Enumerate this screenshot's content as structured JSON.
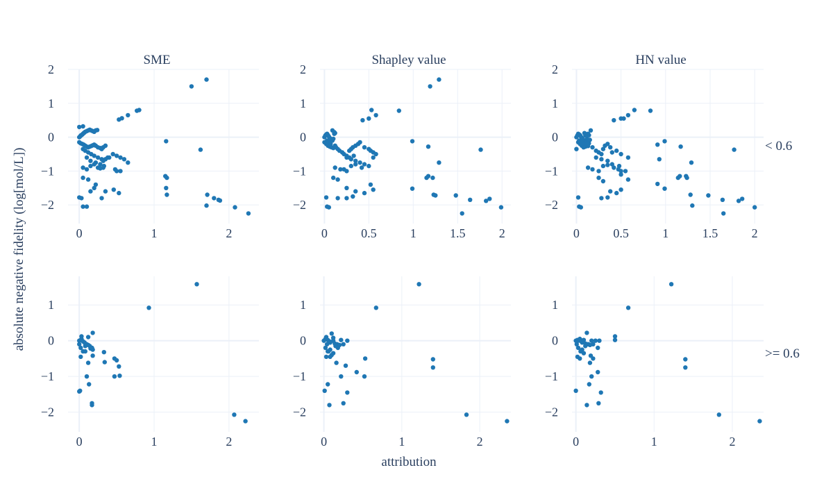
{
  "y_title": "absolute negative fidelity (log[mol/L])",
  "x_title": "attribution",
  "column_titles": [
    "SME",
    "Shapley value",
    "HN value"
  ],
  "row_titles": [
    "< 0.6",
    ">= 0.6"
  ],
  "colors": {
    "marker": "#1f77b4",
    "grid": "#ebf0f8",
    "zero_line": "#ebf0f8",
    "text": "#2a3f5f"
  },
  "chart_data": [
    {
      "type": "scatter",
      "title": "SME",
      "row_facet": "< 0.6",
      "xlim": [
        -0.15,
        2.4
      ],
      "ylim": [
        -2.55,
        2.0
      ],
      "x_ticks": [
        0,
        1,
        2
      ],
      "x_tick_labels": [
        "0",
        "1",
        "2"
      ],
      "y_ticks": [
        -2,
        -1,
        0,
        1,
        2
      ],
      "y_tick_labels": [
        "−2",
        "−1",
        "0",
        "1",
        "2"
      ],
      "x": [
        0.0,
        0.01,
        0.02,
        0.03,
        0.04,
        0.05,
        0.06,
        0.07,
        0.08,
        0.1,
        0.12,
        0.14,
        0.16,
        0.18,
        0.2,
        0.22,
        0.24,
        0.0,
        0.02,
        0.04,
        0.06,
        0.08,
        0.1,
        0.12,
        0.14,
        0.16,
        0.18,
        0.2,
        0.22,
        0.25,
        0.28,
        0.3,
        0.32,
        0.35,
        0.05,
        0.08,
        0.12,
        0.16,
        0.2,
        0.25,
        0.3,
        0.1,
        0.15,
        0.22,
        0.28,
        0.33,
        0.38,
        0.45,
        0.5,
        0.55,
        0.6,
        0.65,
        0.32,
        0.48,
        0.5,
        0.55,
        0.05,
        0.1,
        0.15,
        0.2,
        0.25,
        0.28,
        0.32,
        0.35,
        0.4,
        0.05,
        0.12,
        0.2,
        0.3,
        0.35,
        0.15,
        0.22,
        0.46,
        0.53,
        0.0,
        0.03,
        0.05,
        0.1,
        0.0,
        0.05,
        0.53,
        0.57,
        0.65,
        0.77,
        0.8,
        1.16,
        1.15,
        1.17,
        1.16,
        1.17,
        1.5,
        1.7,
        1.62,
        1.71,
        1.7,
        1.8,
        1.86,
        1.88,
        2.08,
        2.26
      ],
      "y": [
        0.0,
        0.02,
        0.05,
        0.06,
        0.08,
        0.1,
        0.12,
        0.14,
        0.16,
        0.18,
        0.2,
        0.22,
        0.2,
        0.18,
        0.16,
        0.2,
        0.21,
        -0.15,
        -0.18,
        -0.2,
        -0.22,
        -0.25,
        -0.28,
        -0.3,
        -0.28,
        -0.26,
        -0.24,
        -0.22,
        -0.25,
        -0.3,
        -0.32,
        -0.35,
        -0.3,
        -0.25,
        -0.35,
        -0.4,
        -0.45,
        -0.5,
        -0.55,
        -0.6,
        -0.65,
        -0.6,
        -0.7,
        -0.75,
        -0.8,
        -0.85,
        -0.6,
        -0.5,
        -0.55,
        -0.6,
        -0.65,
        -0.75,
        -0.9,
        -0.95,
        -1.0,
        -1.0,
        -0.9,
        -0.95,
        -0.85,
        -0.8,
        -0.9,
        -0.92,
        -0.7,
        -0.65,
        -0.6,
        -1.2,
        -1.25,
        -1.5,
        -1.8,
        -1.6,
        -1.6,
        -1.4,
        -1.55,
        -1.65,
        -1.78,
        -1.8,
        -2.05,
        -2.05,
        0.3,
        0.32,
        0.52,
        0.56,
        0.65,
        0.78,
        0.8,
        -0.12,
        -1.15,
        -1.2,
        -1.5,
        -1.7,
        1.5,
        1.7,
        -0.37,
        -1.7,
        -2.02,
        -1.8,
        -1.85,
        -1.87,
        -2.07,
        -2.25
      ]
    },
    {
      "type": "scatter",
      "title": "Shapley value",
      "row_facet": "< 0.6",
      "xlim": [
        -0.05,
        2.1
      ],
      "ylim": [
        -2.55,
        2.0
      ],
      "x_ticks": [
        0,
        0.5,
        1,
        1.5,
        2
      ],
      "x_tick_labels": [
        "0",
        "0.5",
        "1",
        "1.5",
        "2"
      ],
      "y_ticks": [
        -2,
        -1,
        0,
        1,
        2
      ],
      "y_tick_labels": [
        "−2",
        "−1",
        "0",
        "1",
        "2"
      ],
      "x": [
        0.0,
        0.01,
        0.02,
        0.03,
        0.04,
        0.05,
        0.06,
        0.07,
        0.08,
        0.09,
        0.1,
        0.11,
        0.12,
        0.0,
        0.02,
        0.04,
        0.06,
        0.08,
        0.1,
        0.12,
        0.03,
        0.05,
        0.07,
        0.09,
        0.11,
        0.13,
        0.15,
        0.17,
        0.2,
        0.22,
        0.25,
        0.28,
        0.3,
        0.32,
        0.35,
        0.38,
        0.4,
        0.45,
        0.5,
        0.52,
        0.55,
        0.58,
        0.25,
        0.3,
        0.35,
        0.4,
        0.45,
        0.5,
        0.55,
        0.12,
        0.18,
        0.25,
        0.3,
        0.35,
        0.42,
        0.1,
        0.15,
        0.22,
        0.28,
        0.33,
        0.25,
        0.35,
        0.45,
        0.52,
        0.55,
        0.02,
        0.03,
        0.05,
        0.15,
        0.25,
        0.32,
        0.43,
        0.5,
        0.53,
        0.58,
        0.84,
        0.99,
        1.17,
        1.29,
        0.99,
        1.15,
        1.17,
        1.22,
        1.23,
        1.25,
        1.48,
        1.64,
        1.76,
        1.82,
        1.86,
        1.99,
        1.19,
        1.29,
        1.55
      ],
      "y": [
        0.0,
        0.05,
        0.08,
        0.1,
        0.06,
        0.02,
        -0.02,
        -0.05,
        -0.08,
        -0.1,
        -0.05,
        0.1,
        0.12,
        -0.15,
        -0.2,
        -0.25,
        -0.28,
        -0.3,
        -0.32,
        -0.25,
        -0.1,
        -0.15,
        -0.2,
        0.2,
        0.15,
        -0.3,
        -0.35,
        -0.4,
        -0.45,
        -0.5,
        -0.55,
        -0.4,
        -0.35,
        -0.3,
        -0.25,
        -0.2,
        -0.15,
        -0.3,
        -0.35,
        -0.4,
        -0.45,
        -0.5,
        -0.6,
        -0.65,
        -0.7,
        -0.75,
        -0.8,
        -0.85,
        -0.6,
        -0.9,
        -0.95,
        -1.0,
        -0.85,
        -0.8,
        -0.9,
        -1.2,
        -1.25,
        -0.95,
        -0.6,
        -0.55,
        -1.5,
        -1.6,
        -1.65,
        -1.4,
        -1.55,
        -1.78,
        -2.05,
        -2.07,
        -1.8,
        -1.8,
        -1.75,
        0.5,
        0.55,
        0.8,
        0.65,
        0.78,
        -0.12,
        -0.28,
        -0.75,
        -1.52,
        -1.2,
        -1.15,
        -1.2,
        -1.7,
        -1.72,
        -1.72,
        -1.85,
        -0.37,
        -1.88,
        -1.82,
        -2.07,
        1.5,
        1.7,
        -2.25
      ]
    },
    {
      "type": "scatter",
      "title": "HN value",
      "row_facet": "< 0.6",
      "xlim": [
        -0.05,
        2.1
      ],
      "ylim": [
        -2.55,
        2.0
      ],
      "x_ticks": [
        0,
        0.5,
        1,
        1.5,
        2
      ],
      "x_tick_labels": [
        "0",
        "0.5",
        "1",
        "1.5",
        "2"
      ],
      "y_ticks": [
        -2,
        -1,
        0,
        1,
        2
      ],
      "y_tick_labels": [
        "−2",
        "−1",
        "0",
        "1",
        "2"
      ],
      "x": [
        0.0,
        0.01,
        0.02,
        0.03,
        0.04,
        0.05,
        0.06,
        0.07,
        0.08,
        0.09,
        0.1,
        0.11,
        0.12,
        0.13,
        0.14,
        0.15,
        0.02,
        0.04,
        0.06,
        0.08,
        0.1,
        0.12,
        0.14,
        0.16,
        0.0,
        0.03,
        0.05,
        0.07,
        0.09,
        0.11,
        0.13,
        0.18,
        0.22,
        0.25,
        0.28,
        0.3,
        0.32,
        0.35,
        0.38,
        0.4,
        0.45,
        0.5,
        0.22,
        0.28,
        0.35,
        0.4,
        0.48,
        0.5,
        0.55,
        0.58,
        0.13,
        0.18,
        0.25,
        0.3,
        0.35,
        0.42,
        0.47,
        0.5,
        0.25,
        0.3,
        0.38,
        0.45,
        0.5,
        0.58,
        0.02,
        0.03,
        0.05,
        0.28,
        0.35,
        0.42,
        0.5,
        0.53,
        0.58,
        0.65,
        0.83,
        0.99,
        1.17,
        1.29,
        0.91,
        0.93,
        0.91,
        0.99,
        1.14,
        1.16,
        1.23,
        1.24,
        1.28,
        1.48,
        1.64,
        1.77,
        1.82,
        1.86,
        2.0,
        1.65,
        1.3
      ],
      "y": [
        0.0,
        0.05,
        0.1,
        0.08,
        0.06,
        0.02,
        -0.02,
        -0.05,
        -0.08,
        0.12,
        0.05,
        -0.1,
        -0.05,
        0.1,
        0.06,
        -0.08,
        -0.15,
        -0.2,
        -0.25,
        -0.3,
        -0.28,
        -0.22,
        -0.18,
        0.2,
        -0.35,
        -0.1,
        -0.15,
        -0.12,
        -0.18,
        -0.22,
        -0.26,
        -0.3,
        -0.4,
        -0.45,
        -0.5,
        -0.35,
        -0.25,
        -0.2,
        -0.3,
        -0.45,
        -0.4,
        -0.5,
        -0.6,
        -0.65,
        -0.7,
        -0.8,
        -0.85,
        -1.0,
        -1.0,
        -0.6,
        -0.9,
        -0.95,
        -1.0,
        -0.85,
        -0.82,
        -0.9,
        -0.95,
        -1.1,
        -1.2,
        -1.3,
        -1.6,
        -1.65,
        -1.55,
        -1.25,
        -1.78,
        -2.05,
        -2.07,
        -1.8,
        -1.78,
        0.5,
        0.55,
        0.55,
        0.65,
        0.8,
        0.78,
        -0.12,
        -0.28,
        -0.75,
        -0.22,
        -0.65,
        -1.38,
        -1.52,
        -1.2,
        -1.15,
        -1.15,
        -1.2,
        -1.7,
        -1.72,
        -1.85,
        -0.37,
        -1.88,
        -1.82,
        -2.07,
        -2.25,
        -2.02
      ]
    },
    {
      "type": "scatter",
      "title": "",
      "row_facet": ">= 0.6",
      "xlim": [
        -0.15,
        2.4
      ],
      "ylim": [
        -2.55,
        1.8
      ],
      "x_ticks": [
        0,
        1,
        2
      ],
      "x_tick_labels": [
        "0",
        "1",
        "2"
      ],
      "y_ticks": [
        -2,
        -1,
        0,
        1
      ],
      "y_tick_labels": [
        "−2",
        "−1",
        "0",
        "1"
      ],
      "x": [
        0.0,
        0.02,
        0.03,
        0.05,
        0.07,
        0.08,
        0.1,
        0.12,
        0.14,
        0.16,
        0.18,
        0.0,
        0.02,
        0.05,
        0.08,
        0.12,
        0.18,
        0.03,
        0.08,
        0.15,
        0.17,
        0.02,
        0.12,
        0.18,
        0.33,
        0.34,
        0.47,
        0.5,
        0.53,
        0.54,
        0.47,
        0.17,
        0.17,
        0.1,
        0.13,
        0.0,
        0.01,
        0.93,
        1.57,
        2.07,
        2.22
      ],
      "y": [
        0.0,
        0.02,
        0.05,
        -0.02,
        -0.05,
        -0.08,
        -0.1,
        -0.12,
        -0.15,
        -0.2,
        -0.25,
        -0.1,
        -0.2,
        -0.3,
        -0.3,
        0.1,
        0.22,
        0.12,
        -0.15,
        -0.22,
        -0.2,
        -0.45,
        -0.62,
        -0.42,
        -0.32,
        -0.6,
        -0.5,
        -0.55,
        -0.72,
        -0.98,
        -1.0,
        -1.75,
        -1.8,
        -1.0,
        -1.22,
        -1.42,
        -1.4,
        0.92,
        1.58,
        -2.07,
        -2.25
      ]
    },
    {
      "type": "scatter",
      "title": "",
      "row_facet": ">= 0.6",
      "xlim": [
        -0.05,
        2.4
      ],
      "ylim": [
        -2.55,
        1.8
      ],
      "x_ticks": [
        0,
        1,
        2
      ],
      "x_tick_labels": [
        "0",
        "1",
        "2"
      ],
      "y_ticks": [
        -2,
        -1,
        0,
        1
      ],
      "y_tick_labels": [
        "−2",
        "−1",
        "0",
        "1"
      ],
      "x": [
        0.0,
        0.02,
        0.03,
        0.05,
        0.07,
        0.08,
        0.1,
        0.12,
        0.14,
        0.17,
        0.2,
        0.22,
        0.25,
        0.3,
        0.02,
        0.05,
        0.08,
        0.12,
        0.15,
        0.04,
        0.08,
        0.12,
        0.18,
        0.03,
        0.06,
        0.08,
        0.1,
        0.16,
        0.28,
        0.42,
        0.53,
        0.22,
        0.52,
        0.25,
        0.3,
        0.05,
        0.01,
        0.07,
        0.67,
        1.22,
        1.4,
        1.4,
        1.83,
        2.35
      ],
      "y": [
        0.0,
        0.05,
        0.1,
        0.02,
        -0.02,
        -0.05,
        0.2,
        0.0,
        -0.08,
        -0.1,
        -0.12,
        0.02,
        -0.1,
        0.0,
        -0.2,
        -0.3,
        -0.25,
        -0.35,
        -0.15,
        -0.1,
        -0.05,
        0.08,
        -0.2,
        -0.45,
        -0.3,
        -0.45,
        -0.4,
        -0.62,
        -0.7,
        -0.88,
        -0.5,
        -1.0,
        -1.0,
        -1.75,
        -1.45,
        -1.22,
        -1.4,
        -1.8,
        0.92,
        1.58,
        -0.52,
        -0.75,
        -2.07,
        -2.25
      ]
    },
    {
      "type": "scatter",
      "title": "",
      "row_facet": ">= 0.6",
      "xlim": [
        -0.05,
        2.4
      ],
      "ylim": [
        -2.55,
        1.8
      ],
      "x_ticks": [
        0,
        1,
        2
      ],
      "x_tick_labels": [
        "0",
        "1",
        "2"
      ],
      "y_ticks": [
        -2,
        -1,
        0,
        1
      ],
      "y_tick_labels": [
        "−2",
        "−1",
        "0",
        "1"
      ],
      "x": [
        0.0,
        0.02,
        0.03,
        0.05,
        0.07,
        0.08,
        0.1,
        0.12,
        0.14,
        0.16,
        0.18,
        0.2,
        0.22,
        0.25,
        0.28,
        0.3,
        0.01,
        0.03,
        0.06,
        0.08,
        0.12,
        0.15,
        0.02,
        0.05,
        0.1,
        0.18,
        0.2,
        0.5,
        0.5,
        0.28,
        0.22,
        0.32,
        0.29,
        0.17,
        0.19,
        0.0,
        0.14,
        0.67,
        1.22,
        1.4,
        1.4,
        1.83,
        2.35
      ],
      "y": [
        0.0,
        0.02,
        0.0,
        0.05,
        -0.02,
        -0.05,
        0.02,
        -0.08,
        0.22,
        -0.1,
        -0.12,
        0.0,
        -0.1,
        0.0,
        -0.2,
        0.0,
        -0.1,
        -0.2,
        -0.3,
        -0.25,
        -0.15,
        -0.1,
        -0.45,
        -0.5,
        -0.35,
        -0.62,
        -1.0,
        0.02,
        0.12,
        -0.88,
        -0.5,
        -1.45,
        -1.75,
        -1.22,
        -0.42,
        -1.4,
        -1.8,
        0.92,
        1.58,
        -0.52,
        -0.75,
        -2.07,
        -2.25
      ]
    }
  ]
}
